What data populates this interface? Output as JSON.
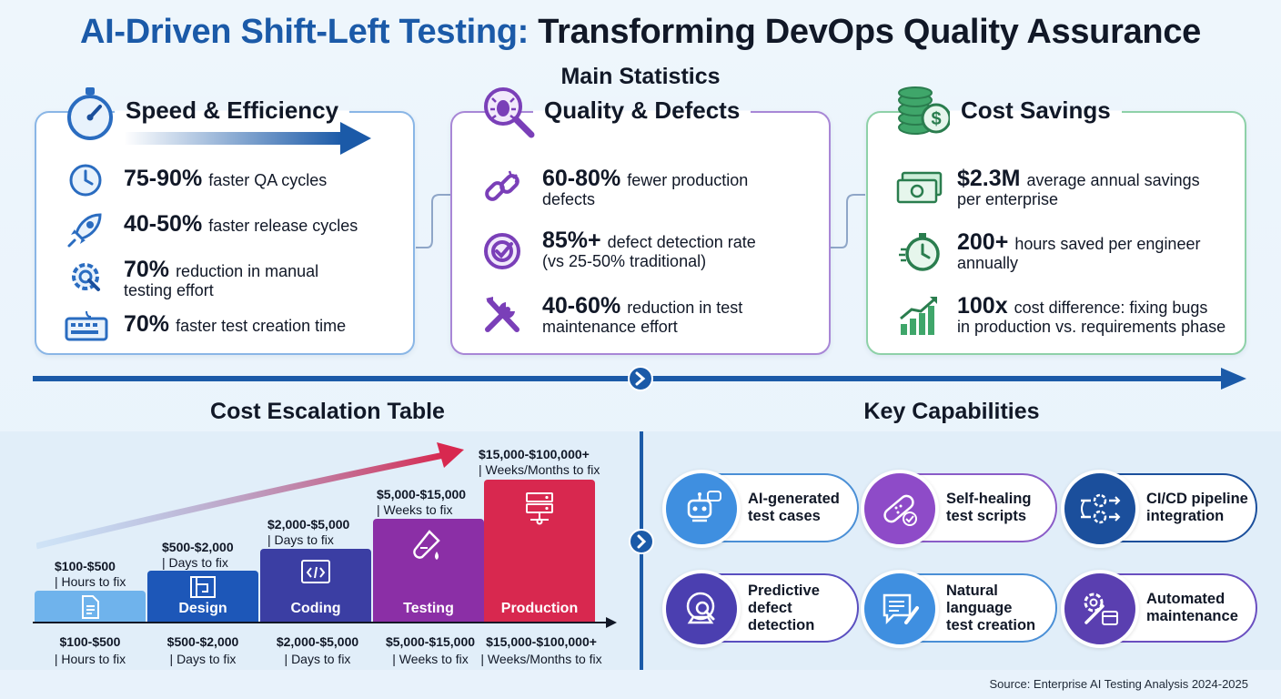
{
  "header": {
    "title_highlight": "AI-Driven Shift-Left Testing:",
    "title_rest": "Transforming DevOps Quality Assurance",
    "subtitle": "Main Statistics"
  },
  "cards": [
    {
      "title": "Speed & Efficiency",
      "accent": "#4a8fd6",
      "icon": "stopwatch-icon",
      "stats": [
        {
          "value": "75-90%",
          "text": "faster QA cycles",
          "text2": "",
          "icon": "clock-icon"
        },
        {
          "value": "40-50%",
          "text": "faster release cycles",
          "text2": "",
          "icon": "rocket-icon"
        },
        {
          "value": "70%",
          "text": "reduction in manual",
          "text2": "testing effort",
          "icon": "gear-wrench-icon"
        },
        {
          "value": "70%",
          "text": "faster test creation time",
          "text2": "",
          "icon": "keyboard-icon"
        }
      ]
    },
    {
      "title": "Quality & Defects",
      "accent": "#8a5cc8",
      "icon": "bug-magnifier-icon",
      "stats": [
        {
          "value": "60-80%",
          "text": "fewer production",
          "text2": "defects",
          "icon": "broken-link-icon"
        },
        {
          "value": "85%+",
          "text": "defect detection rate",
          "text2": "(vs 25-50% traditional)",
          "icon": "target-icon"
        },
        {
          "value": "40-60%",
          "text": "reduction in test",
          "text2": "maintenance effort",
          "icon": "tools-icon"
        }
      ]
    },
    {
      "title": "Cost Savings",
      "accent": "#5cbf86",
      "icon": "coins-dollar-icon",
      "stats": [
        {
          "value": "$2.3M",
          "text": "average annual savings",
          "text2": "per enterprise",
          "icon": "cash-icon"
        },
        {
          "value": "200+",
          "text": "hours saved per engineer",
          "text2": "annually",
          "icon": "timer-icon"
        },
        {
          "value": "100x",
          "text": "cost difference: fixing bugs",
          "text2": "in production vs. requirements phase",
          "icon": "growth-chart-icon"
        }
      ]
    }
  ],
  "cost_table": {
    "heading": "Cost Escalation Table",
    "stages": [
      {
        "label": "",
        "range": "$100-$500",
        "time": "| Hours to fix",
        "color": "#6fb3ec",
        "icon": "document-icon",
        "level": 1
      },
      {
        "label": "Design",
        "range": "$500-$2,000",
        "time": "| Days to fix",
        "color": "#1d57b8",
        "icon": "blueprint-icon",
        "level": 2
      },
      {
        "label": "Coding",
        "range": "$2,000-$5,000",
        "time": "| Days to fix",
        "color": "#3b3ea3",
        "icon": "code-window-icon",
        "level": 3
      },
      {
        "label": "Testing",
        "range": "$5,000-$15,000",
        "time": "| Weeks to fix",
        "color": "#8b2fa6",
        "icon": "test-tube-icon",
        "level": 4
      },
      {
        "label": "Production",
        "range": "$15,000-$100,000+",
        "time": "| Weeks/Months to fix",
        "color": "#d8284f",
        "icon": "server-icon",
        "level": 5
      }
    ]
  },
  "capabilities": {
    "heading": "Key Capabilities",
    "items": [
      {
        "line1": "AI-generated",
        "line2": "test cases",
        "line3": "",
        "color": "#3f8fe0",
        "border": "#4a8fd6",
        "icon": "robot-icon"
      },
      {
        "line1": "Self-healing",
        "line2": "test scripts",
        "line3": "",
        "color": "#8e4bc8",
        "border": "#8a5cc8",
        "icon": "bandage-icon"
      },
      {
        "line1": "CI/CD pipeline",
        "line2": "integration",
        "line3": "",
        "color": "#1b4f9c",
        "border": "#1b4f9c",
        "icon": "pipeline-gears-icon"
      },
      {
        "line1": "Predictive",
        "line2": "defect",
        "line3": "detection",
        "color": "#4b3fb0",
        "border": "#5a4fc0",
        "icon": "crystal-ball-icon"
      },
      {
        "line1": "Natural",
        "line2": "language",
        "line3": "test creation",
        "color": "#3f8fe0",
        "border": "#4a8fd6",
        "icon": "chat-pencil-icon"
      },
      {
        "line1": "Automated",
        "line2": "maintenance",
        "line3": "",
        "color": "#5a3fb0",
        "border": "#6a4fc0",
        "icon": "gear-calendar-icon"
      }
    ]
  },
  "source": "Source: Enterprise AI Testing Analysis 2024-2025"
}
